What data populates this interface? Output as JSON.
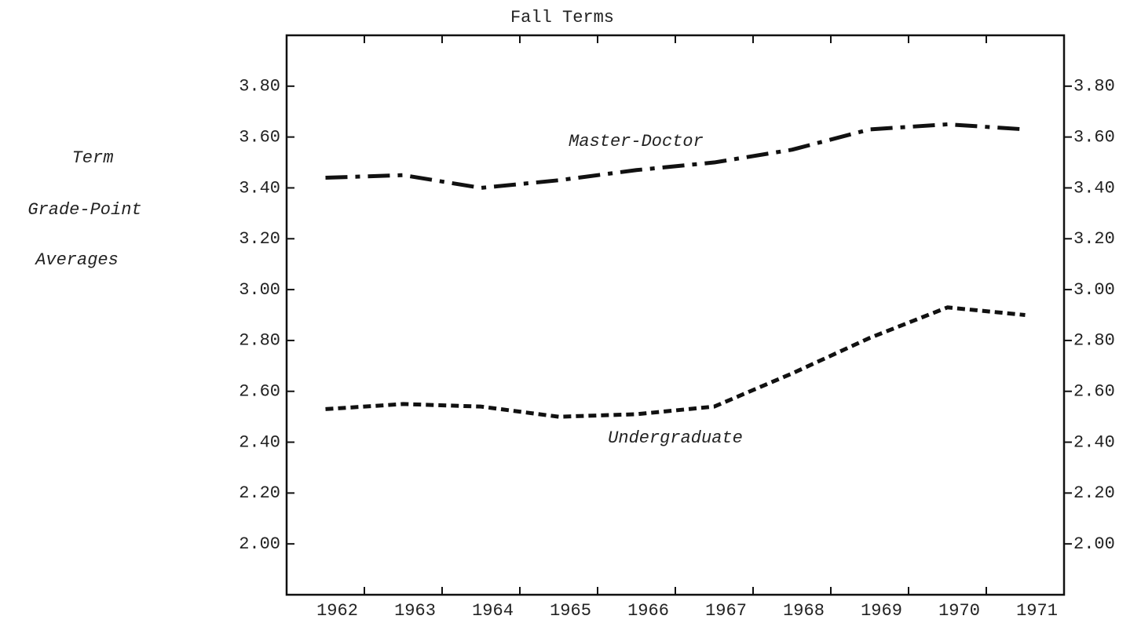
{
  "chart_data": {
    "type": "line",
    "title": "Fall Terms",
    "ylabel": [
      "Term",
      "Grade-Point",
      "Averages"
    ],
    "categories": [
      "1962",
      "1963",
      "1964",
      "1965",
      "1966",
      "1967",
      "1968",
      "1969",
      "1970",
      "1971"
    ],
    "series": [
      {
        "name": "Master-Doctor",
        "color": "#111111",
        "linestyle": "dashdot",
        "values": [
          3.44,
          3.45,
          3.4,
          3.43,
          3.47,
          3.5,
          3.55,
          3.63,
          3.65,
          3.63
        ]
      },
      {
        "name": "Undergraduate",
        "color": "#111111",
        "linestyle": "dashed",
        "values": [
          2.53,
          2.55,
          2.54,
          2.5,
          2.51,
          2.54,
          2.67,
          2.81,
          2.93,
          2.9
        ]
      }
    ],
    "ylim": [
      1.8,
      4.0
    ],
    "yticks": [
      {
        "value": 2.0,
        "label": "2.00"
      },
      {
        "value": 2.2,
        "label": "2.20"
      },
      {
        "value": 2.4,
        "label": "2.40"
      },
      {
        "value": 2.6,
        "label": "2.60"
      },
      {
        "value": 2.8,
        "label": "2.80"
      },
      {
        "value": 3.0,
        "label": "3.00"
      },
      {
        "value": 3.2,
        "label": "3.20"
      },
      {
        "value": 3.4,
        "label": "3.40"
      },
      {
        "value": 3.6,
        "label": "3.60"
      },
      {
        "value": 3.8,
        "label": "3.80"
      }
    ],
    "y2lim": [
      1.8,
      4.0
    ],
    "y2ticks": [
      {
        "value": 2.0,
        "label": "2.00"
      },
      {
        "value": 2.2,
        "label": "2.20"
      },
      {
        "value": 2.4,
        "label": "2.40"
      },
      {
        "value": 2.6,
        "label": "2.60"
      },
      {
        "value": 2.8,
        "label": "2.80"
      },
      {
        "value": 3.0,
        "label": "3.00"
      },
      {
        "value": 3.2,
        "label": "3.20"
      },
      {
        "value": 3.4,
        "label": "3.40"
      },
      {
        "value": 3.6,
        "label": "3.60"
      },
      {
        "value": 3.8,
        "label": "3.80"
      }
    ],
    "grid": false
  }
}
